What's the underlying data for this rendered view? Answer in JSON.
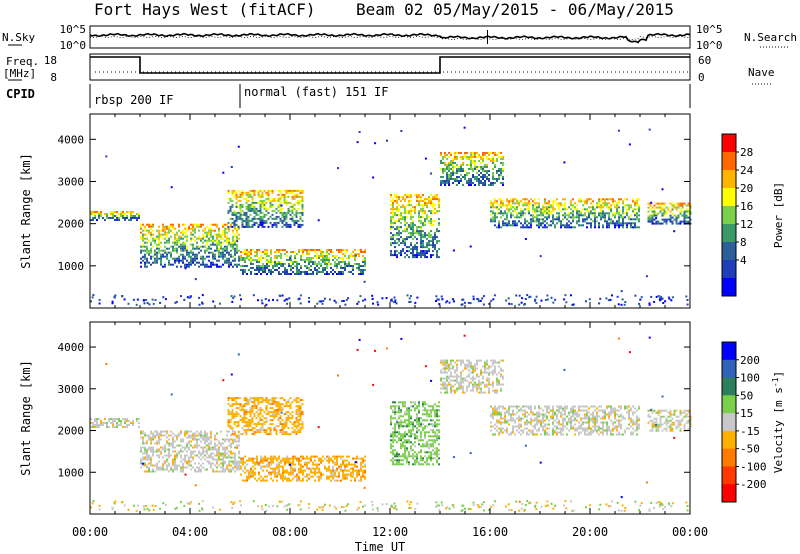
{
  "header": {
    "title": "Fort Hays West (fitACF)",
    "subtitle": "Beam 02 05/May/2015 - 06/May/2015"
  },
  "top_panels": {
    "nsky_label": "N.Sky",
    "nsky_ticks": [
      "10^5",
      "10^0"
    ],
    "nsearch_label": "N.Search",
    "right_ticks_top": [
      "10^5",
      "10^0"
    ],
    "freq_label": "Freq.",
    "freq_unit": "[MHz]",
    "freq_ticks": [
      "18",
      "8"
    ],
    "nave_label": "Nave",
    "nave_ticks": [
      "60",
      "0"
    ],
    "cpid_label": "CPID",
    "cpid_segments": [
      {
        "label": "rbsp 200 IF",
        "start_h": 0,
        "end_h": 6
      },
      {
        "label": "normal (fast) 151 IF",
        "start_h": 6,
        "end_h": 24
      }
    ]
  },
  "chart_data": [
    {
      "type": "heatmap",
      "name": "power",
      "ylabel": "Slant Range [km]",
      "xlabel": "Time UT",
      "x_ticks": [
        "00:00",
        "04:00",
        "08:00",
        "12:00",
        "16:00",
        "20:00",
        "00:00"
      ],
      "x_range_hours": [
        0,
        24
      ],
      "y_ticks": [
        1000,
        2000,
        3000,
        4000
      ],
      "ylim": [
        0,
        4600
      ],
      "colorbar": {
        "label": "Power [dB]",
        "ticks": [
          "28",
          "24",
          "20",
          "16",
          "12",
          "8",
          "4"
        ],
        "colors": [
          "#ff0000",
          "#ff6a00",
          "#ffb400",
          "#ffff00",
          "#7ad04a",
          "#3a9a6a",
          "#2a5f9a",
          "#1f3fb8",
          "#0000ff"
        ]
      },
      "echo_regions": [
        {
          "t0": 0.0,
          "t1": 2.0,
          "r0": 2100,
          "r1": 2300,
          "p": 16
        },
        {
          "t0": 2.0,
          "t1": 6.0,
          "r0": 1000,
          "r1": 2000,
          "p": 18
        },
        {
          "t0": 5.5,
          "t1": 8.5,
          "r0": 1900,
          "r1": 2800,
          "p": 10
        },
        {
          "t0": 6.0,
          "t1": 11.0,
          "r0": 800,
          "r1": 1400,
          "p": 6
        },
        {
          "t0": 12.0,
          "t1": 14.0,
          "r0": 1200,
          "r1": 2700,
          "p": 14
        },
        {
          "t0": 14.0,
          "t1": 16.5,
          "r0": 2900,
          "r1": 3700,
          "p": 12
        },
        {
          "t0": 16.0,
          "t1": 22.0,
          "r0": 1900,
          "r1": 2600,
          "p": 16
        },
        {
          "t0": 22.3,
          "t1": 24.0,
          "r0": 2000,
          "r1": 2500,
          "p": 16
        }
      ]
    },
    {
      "type": "heatmap",
      "name": "velocity",
      "ylabel": "Slant Range [km]",
      "xlabel": "Time UT",
      "x_ticks": [
        "00:00",
        "04:00",
        "08:00",
        "12:00",
        "16:00",
        "20:00",
        "00:00"
      ],
      "x_range_hours": [
        0,
        24
      ],
      "y_ticks": [
        1000,
        2000,
        3000,
        4000
      ],
      "ylim": [
        0,
        4600
      ],
      "colorbar": {
        "label": "Velocity [m s",
        "label_exp": "-1",
        "label_close": "]",
        "ticks": [
          "200",
          "100",
          "50",
          "15",
          "-15",
          "-50",
          "-100",
          "-200"
        ],
        "colors": [
          "#0000ff",
          "#2f62b8",
          "#2b7f5a",
          "#7ad04a",
          "#c8c8c8",
          "#ffb000",
          "#ff7a00",
          "#ff3a00",
          "#ff0000"
        ]
      },
      "echo_regions": [
        {
          "t0": 0.0,
          "t1": 2.0,
          "r0": 2100,
          "r1": 2300,
          "v": 0
        },
        {
          "t0": 2.0,
          "t1": 6.0,
          "r0": 1000,
          "r1": 2000,
          "v": 0
        },
        {
          "t0": 5.5,
          "t1": 8.5,
          "r0": 1900,
          "r1": 2800,
          "v": -30
        },
        {
          "t0": 6.0,
          "t1": 11.0,
          "r0": 800,
          "r1": 1400,
          "v": -60
        },
        {
          "t0": 12.0,
          "t1": 14.0,
          "r0": 1200,
          "r1": 2700,
          "v": 40
        },
        {
          "t0": 14.0,
          "t1": 16.5,
          "r0": 2900,
          "r1": 3700,
          "v": 0
        },
        {
          "t0": 16.0,
          "t1": 22.0,
          "r0": 1900,
          "r1": 2600,
          "v": 0
        },
        {
          "t0": 22.3,
          "t1": 24.0,
          "r0": 2000,
          "r1": 2500,
          "v": 0
        }
      ]
    }
  ]
}
